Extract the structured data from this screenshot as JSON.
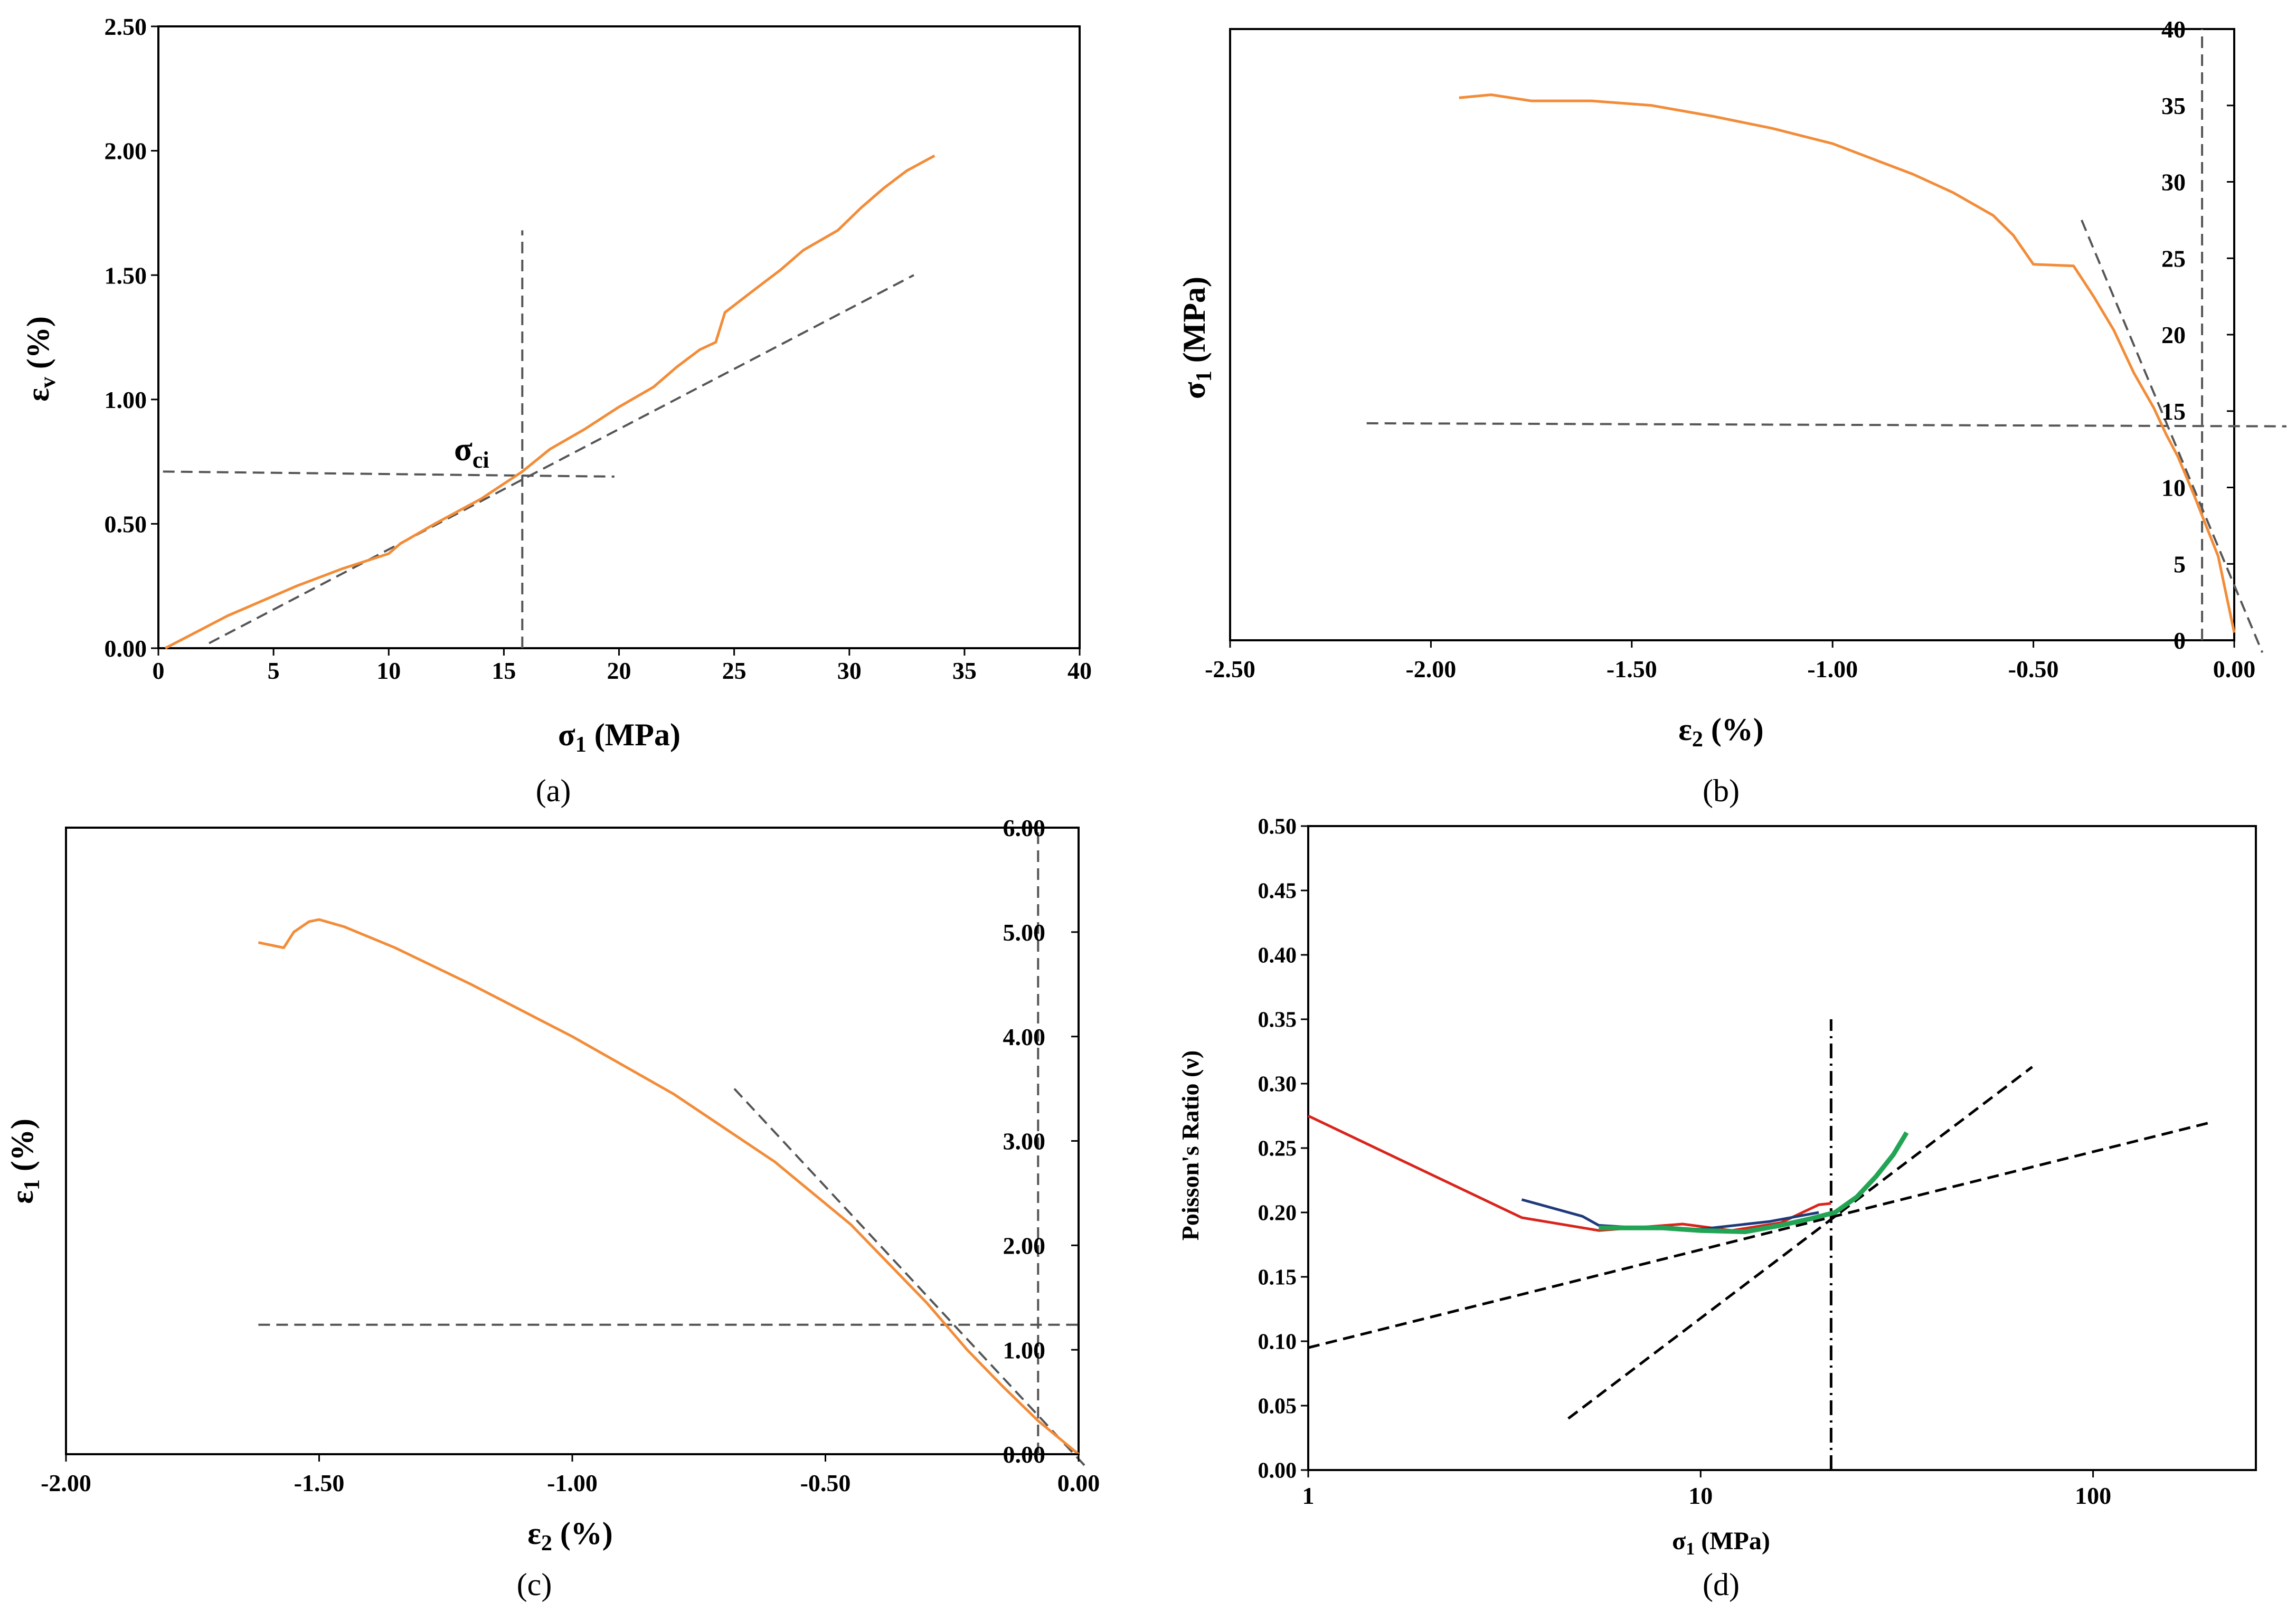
{
  "colors": {
    "orange": "#F28C38",
    "red": "#D9241C",
    "navy": "#1F3A7A",
    "green": "#23A455",
    "dash": "#555555",
    "axis": "#000000"
  },
  "chart_data": [
    {
      "id": "a",
      "type": "line",
      "caption": "(a)",
      "xlabel": "σ1 (MPa)",
      "ylabel": "εv (%)",
      "xlim": [
        0,
        40
      ],
      "ylim": [
        0,
        2.5
      ],
      "xticks": [
        0,
        5,
        10,
        15,
        20,
        25,
        30,
        35,
        40
      ],
      "xtick_labels": [
        "0",
        "5",
        "10",
        "15",
        "20",
        "25",
        "30",
        "35",
        "40"
      ],
      "yticks": [
        0,
        0.5,
        1.0,
        1.5,
        2.0,
        2.5
      ],
      "ytick_labels": [
        "0.00",
        "0.50",
        "1.00",
        "1.50",
        "2.00",
        "2.50"
      ],
      "annotation": {
        "text": "σci",
        "x": 15.8,
        "y": 0.71
      },
      "series": [
        {
          "color": "orange",
          "x": [
            0.3,
            3,
            6,
            8,
            10,
            10.5,
            12,
            14,
            15.8,
            17,
            18.5,
            20,
            21.5,
            22.5,
            23.5,
            24.2,
            24.6,
            26,
            27,
            28,
            29.5,
            30.5,
            31.5,
            32.5,
            33.3,
            33.7
          ],
          "y": [
            0.0,
            0.13,
            0.25,
            0.32,
            0.38,
            0.42,
            0.5,
            0.6,
            0.71,
            0.8,
            0.88,
            0.97,
            1.05,
            1.13,
            1.2,
            1.23,
            1.35,
            1.45,
            1.52,
            1.6,
            1.68,
            1.77,
            1.85,
            1.92,
            1.96,
            1.98
          ]
        }
      ],
      "reference_lines": [
        {
          "x": [
            2.2,
            32.8
          ],
          "y": [
            0.02,
            1.5
          ]
        },
        {
          "x": [
            15.8,
            15.8
          ],
          "y": [
            0,
            1.68
          ]
        },
        {
          "x": [
            0.2,
            19.8
          ],
          "y": [
            0.71,
            0.69
          ]
        }
      ]
    },
    {
      "id": "b",
      "type": "line",
      "caption": "(b)",
      "xlabel": "ε2 (%)",
      "ylabel": "σ1 (MPa)",
      "xlim": [
        -2.5,
        0
      ],
      "ylim": [
        0,
        40
      ],
      "xticks": [
        -2.5,
        -2.0,
        -1.5,
        -1.0,
        -0.5,
        0
      ],
      "xtick_labels": [
        "-2.50",
        "-2.00",
        "-1.50",
        "-1.00",
        "-0.50",
        "0.00"
      ],
      "yticks": [
        0,
        5,
        10,
        15,
        20,
        25,
        30,
        35,
        40
      ],
      "ytick_labels": [
        "0",
        "5",
        "10",
        "15",
        "20",
        "25",
        "30",
        "35",
        "40"
      ],
      "series": [
        {
          "color": "orange",
          "x": [
            -1.93,
            -1.85,
            -1.75,
            -1.6,
            -1.45,
            -1.3,
            -1.15,
            -1.0,
            -0.9,
            -0.8,
            -0.7,
            -0.6,
            -0.55,
            -0.5,
            -0.4,
            -0.35,
            -0.3,
            -0.25,
            -0.2,
            -0.17,
            -0.14,
            -0.1,
            -0.07,
            -0.04,
            -0.02,
            0
          ],
          "y": [
            35.5,
            35.7,
            35.3,
            35.3,
            35.0,
            34.3,
            33.5,
            32.5,
            31.5,
            30.5,
            29.3,
            27.8,
            26.5,
            24.6,
            24.5,
            22.5,
            20.3,
            17.5,
            15.2,
            13.5,
            12.0,
            9.5,
            7.5,
            5.5,
            3.0,
            0.5
          ]
        }
      ],
      "reference_lines": [
        {
          "x": [
            -0.38,
            0.07
          ],
          "y": [
            27.5,
            -0.8
          ]
        },
        {
          "x": [
            -2.16,
            0.13
          ],
          "y": [
            14.2,
            14.0
          ]
        },
        {
          "x": [
            -0.08,
            -0.08
          ],
          "y": [
            0,
            40
          ]
        }
      ]
    },
    {
      "id": "c",
      "type": "line",
      "caption": "(c)",
      "xlabel": "ε2 (%)",
      "ylabel": "ε1 (%)",
      "xlim": [
        -2.0,
        0
      ],
      "ylim": [
        0,
        6.0
      ],
      "xticks": [
        -2.0,
        -1.5,
        -1.0,
        -0.5,
        0
      ],
      "xtick_labels": [
        "-2.00",
        "-1.50",
        "-1.00",
        "-0.50",
        "0.00"
      ],
      "yticks": [
        0,
        1,
        2,
        3,
        4,
        5,
        6
      ],
      "ytick_labels": [
        "0.00",
        "1.00",
        "2.00",
        "3.00",
        "4.00",
        "5.00",
        "6.00"
      ],
      "series": [
        {
          "color": "orange",
          "x": [
            -1.62,
            -1.57,
            -1.55,
            -1.52,
            -1.5,
            -1.45,
            -1.35,
            -1.2,
            -1.0,
            -0.8,
            -0.6,
            -0.45,
            -0.38,
            -0.3,
            -0.22,
            -0.15,
            -0.08,
            0
          ],
          "y": [
            4.9,
            4.85,
            5.0,
            5.1,
            5.12,
            5.05,
            4.85,
            4.5,
            4.0,
            3.45,
            2.8,
            2.2,
            1.85,
            1.45,
            1.0,
            0.65,
            0.32,
            0.0
          ]
        }
      ],
      "reference_lines": [
        {
          "x": [
            -0.68,
            0.02
          ],
          "y": [
            3.5,
            -0.15
          ]
        },
        {
          "x": [
            -1.62,
            0.0
          ],
          "y": [
            1.24,
            1.24
          ]
        },
        {
          "x": [
            -0.08,
            -0.08
          ],
          "y": [
            0,
            6.0
          ]
        }
      ]
    },
    {
      "id": "d",
      "type": "line",
      "caption": "(d)",
      "xlabel": "σ1 (MPa)",
      "ylabel": "Poisson's Ratio (ν)",
      "xscale": "log",
      "xlim": [
        1,
        260
      ],
      "ylim": [
        0,
        0.5
      ],
      "xticks": [
        1,
        10,
        100
      ],
      "xtick_labels": [
        "1",
        "10",
        "100"
      ],
      "yticks": [
        0,
        0.05,
        0.1,
        0.15,
        0.2,
        0.25,
        0.3,
        0.35,
        0.4,
        0.45,
        0.5
      ],
      "ytick_labels": [
        "0.00",
        "0.05",
        "0.10",
        "0.15",
        "0.20",
        "0.25",
        "0.30",
        "0.35",
        "0.40",
        "0.45",
        "0.50"
      ],
      "series": [
        {
          "color": "red",
          "x": [
            1,
            3.5,
            5.5,
            9,
            12,
            16,
            20,
            21.5
          ],
          "y": [
            0.275,
            0.196,
            0.186,
            0.191,
            0.186,
            0.192,
            0.206,
            0.207
          ]
        },
        {
          "color": "navy",
          "x": [
            3.5,
            5,
            5.5,
            7,
            10,
            15,
            20
          ],
          "y": [
            0.21,
            0.197,
            0.19,
            0.188,
            0.187,
            0.193,
            0.2
          ]
        },
        {
          "color": "green",
          "x": [
            5.5,
            8,
            10,
            13,
            16,
            19,
            22,
            25,
            28,
            31,
            33.5
          ],
          "y": [
            0.188,
            0.188,
            0.186,
            0.185,
            0.19,
            0.195,
            0.2,
            0.212,
            0.228,
            0.245,
            0.262
          ]
        }
      ],
      "reference_lines": [
        {
          "x": [
            4.6,
            70
          ],
          "y": [
            0.04,
            0.313
          ]
        },
        {
          "x": [
            1,
            200
          ],
          "y": [
            0.095,
            0.27
          ]
        },
        {
          "x": [
            21.5,
            21.5
          ],
          "y": [
            0,
            0.35
          ]
        }
      ]
    }
  ]
}
